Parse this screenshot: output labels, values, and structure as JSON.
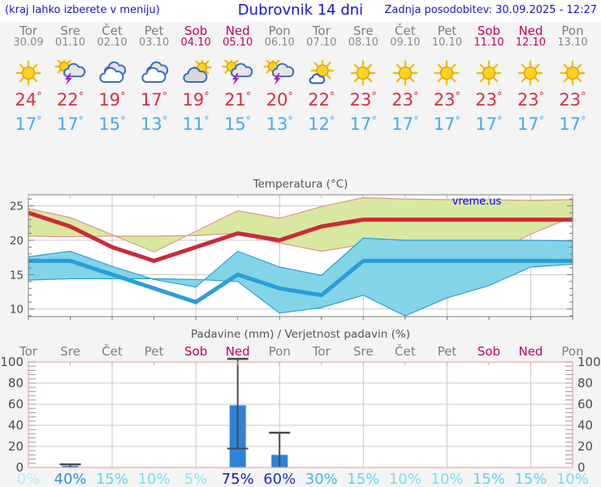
{
  "header": {
    "left_note": "(kraj lahko izberete v meniju)",
    "title": "Dubrovnik 14 dni",
    "updated": "Zadnja posodobitev: 30.09.2025 - 12:27"
  },
  "colors": {
    "link_blue": "#1414dc",
    "weekday_gray": "#7e7e7e",
    "weekend_red": "#c4005e",
    "tmax_red": "#d6303e",
    "tmin_blue": "#45abec",
    "temp_line_max": "#cb2a38",
    "temp_line_min": "#2b9ed8",
    "temp_band_max_fill": "#d9e8a0",
    "temp_band_max_edge": "#e4938c",
    "temp_band_min_fill": "#84d4e8",
    "temp_band_min_edge": "#2aa0d8",
    "bar_blue": "#2f82d8",
    "whisker_gray": "#4a4a4a",
    "grid_gray": "#c8c8c8",
    "frame_gray": "#808080",
    "frame_pink": "#eca6a6",
    "watermark_blue": "#0000ff",
    "title_gray": "#555555"
  },
  "days": [
    {
      "name": "Tor",
      "date": "30.09",
      "weekend": false,
      "icon": "sun",
      "tmax": 24,
      "tmin": 17
    },
    {
      "name": "Sre",
      "date": "01.10",
      "weekend": false,
      "icon": "sun-cloud-storm",
      "tmax": 22,
      "tmin": 17
    },
    {
      "name": "Čet",
      "date": "02.10",
      "weekend": false,
      "icon": "clouds",
      "tmax": 19,
      "tmin": 15
    },
    {
      "name": "Pet",
      "date": "03.10",
      "weekend": false,
      "icon": "clouds",
      "tmax": 17,
      "tmin": 13
    },
    {
      "name": "Sob",
      "date": "04.10",
      "weekend": true,
      "icon": "sun-cloud",
      "tmax": 19,
      "tmin": 11
    },
    {
      "name": "Ned",
      "date": "05.10",
      "weekend": true,
      "icon": "sun-cloud-storm",
      "tmax": 21,
      "tmin": 15
    },
    {
      "name": "Pon",
      "date": "06.10",
      "weekend": false,
      "icon": "sun-cloud-storm",
      "tmax": 20,
      "tmin": 13
    },
    {
      "name": "Tor",
      "date": "07.10",
      "weekend": false,
      "icon": "sun-small-cloud",
      "tmax": 22,
      "tmin": 12
    },
    {
      "name": "Sre",
      "date": "08.10",
      "weekend": false,
      "icon": "sun",
      "tmax": 23,
      "tmin": 17
    },
    {
      "name": "Čet",
      "date": "09.10",
      "weekend": false,
      "icon": "sun",
      "tmax": 23,
      "tmin": 17
    },
    {
      "name": "Pet",
      "date": "10.10",
      "weekend": false,
      "icon": "sun",
      "tmax": 23,
      "tmin": 17
    },
    {
      "name": "Sob",
      "date": "11.10",
      "weekend": true,
      "icon": "sun",
      "tmax": 23,
      "tmin": 17
    },
    {
      "name": "Ned",
      "date": "12.10",
      "weekend": true,
      "icon": "sun",
      "tmax": 23,
      "tmin": 17
    },
    {
      "name": "Pon",
      "date": "13.10",
      "weekend": false,
      "icon": "sun",
      "tmax": 23,
      "tmin": 17
    }
  ],
  "chart_data": [
    {
      "type": "line",
      "title": "Temperatura (°C)",
      "watermark": "vreme.us",
      "categories": [
        "Tor",
        "Sre",
        "Čet",
        "Pet",
        "Sob",
        "Ned",
        "Pon",
        "Tor",
        "Sre",
        "Čet",
        "Pet",
        "Sob",
        "Ned",
        "Pon"
      ],
      "yticks": [
        10,
        15,
        20,
        25
      ],
      "ylim": [
        8.9,
        26.6
      ],
      "grid": true,
      "series": [
        {
          "name": "tmax",
          "color": "#cb2a38",
          "values": [
            24,
            22,
            19,
            17,
            19,
            21,
            20,
            22,
            23,
            23,
            23,
            23,
            23,
            23
          ]
        },
        {
          "name": "tmax_range_upper",
          "values": [
            24.6,
            23.3,
            20.8,
            18.3,
            21.3,
            24.3,
            23.2,
            24.9,
            26.2,
            26.0,
            25.9,
            25.9,
            25.8,
            25.9
          ]
        },
        {
          "name": "tmax_range_lower",
          "values": [
            23.4,
            20.9,
            17.8,
            16.1,
            17.4,
            19.4,
            18.4,
            19.6,
            21.0,
            20.7,
            20.6,
            20.6,
            20.5,
            20.6
          ]
        },
        {
          "name": "tmin",
          "color": "#2b9ed8",
          "values": [
            17,
            17,
            15,
            13,
            11,
            15,
            13,
            12,
            17,
            17,
            17,
            17,
            17,
            17
          ]
        },
        {
          "name": "tmin_range_upper",
          "values": [
            17.6,
            18.4,
            16.2,
            14.3,
            13.2,
            18.4,
            16.1,
            14.9,
            20.3,
            20.0,
            20.0,
            20.0,
            20.0,
            19.9
          ]
        },
        {
          "name": "tmin_range_lower",
          "values": [
            16.5,
            16.1,
            13.4,
            11.6,
            9.0,
            12.0,
            10.2,
            9.4,
            14.0,
            14.3,
            14.4,
            14.4,
            14.4,
            14.2
          ]
        }
      ]
    },
    {
      "type": "bar",
      "title": "Padavine (mm) / Verjetnost padavin (%)",
      "categories": [
        "Tor",
        "Sre",
        "Čet",
        "Pet",
        "Sob",
        "Ned",
        "Pon",
        "Tor",
        "Sre",
        "Čet",
        "Pet",
        "Sob",
        "Ned",
        "Pon"
      ],
      "weekend": [
        false,
        false,
        false,
        false,
        true,
        true,
        false,
        false,
        false,
        false,
        false,
        true,
        true,
        false
      ],
      "yticks": [
        0,
        20,
        40,
        60,
        80,
        100
      ],
      "ylim": [
        0,
        101
      ],
      "values_mm": [
        0,
        1.5,
        0,
        0,
        0,
        59,
        12,
        0,
        0,
        0,
        0,
        0,
        0,
        0
      ],
      "whisker_low": [
        null,
        0,
        null,
        null,
        null,
        18,
        0,
        null,
        null,
        null,
        null,
        null,
        null,
        null
      ],
      "whisker_high": [
        null,
        3,
        null,
        null,
        null,
        103,
        33,
        null,
        null,
        null,
        null,
        null,
        null,
        null
      ],
      "prob_labels": [
        "0%",
        "40%",
        "15%",
        "10%",
        "5%",
        "75%",
        "60%",
        "30%",
        "15%",
        "10%",
        "10%",
        "15%",
        "15%",
        "10%"
      ],
      "prob_colors": [
        "#b4ecf6",
        "#2b96dc",
        "#66d2ec",
        "#7ddcf0",
        "#96e2f2",
        "#1818b4",
        "#2430cc",
        "#49b4e2",
        "#66d2ec",
        "#7ddcf0",
        "#7ddcf0",
        "#66d2ec",
        "#66d2ec",
        "#7ddcf0"
      ]
    }
  ]
}
